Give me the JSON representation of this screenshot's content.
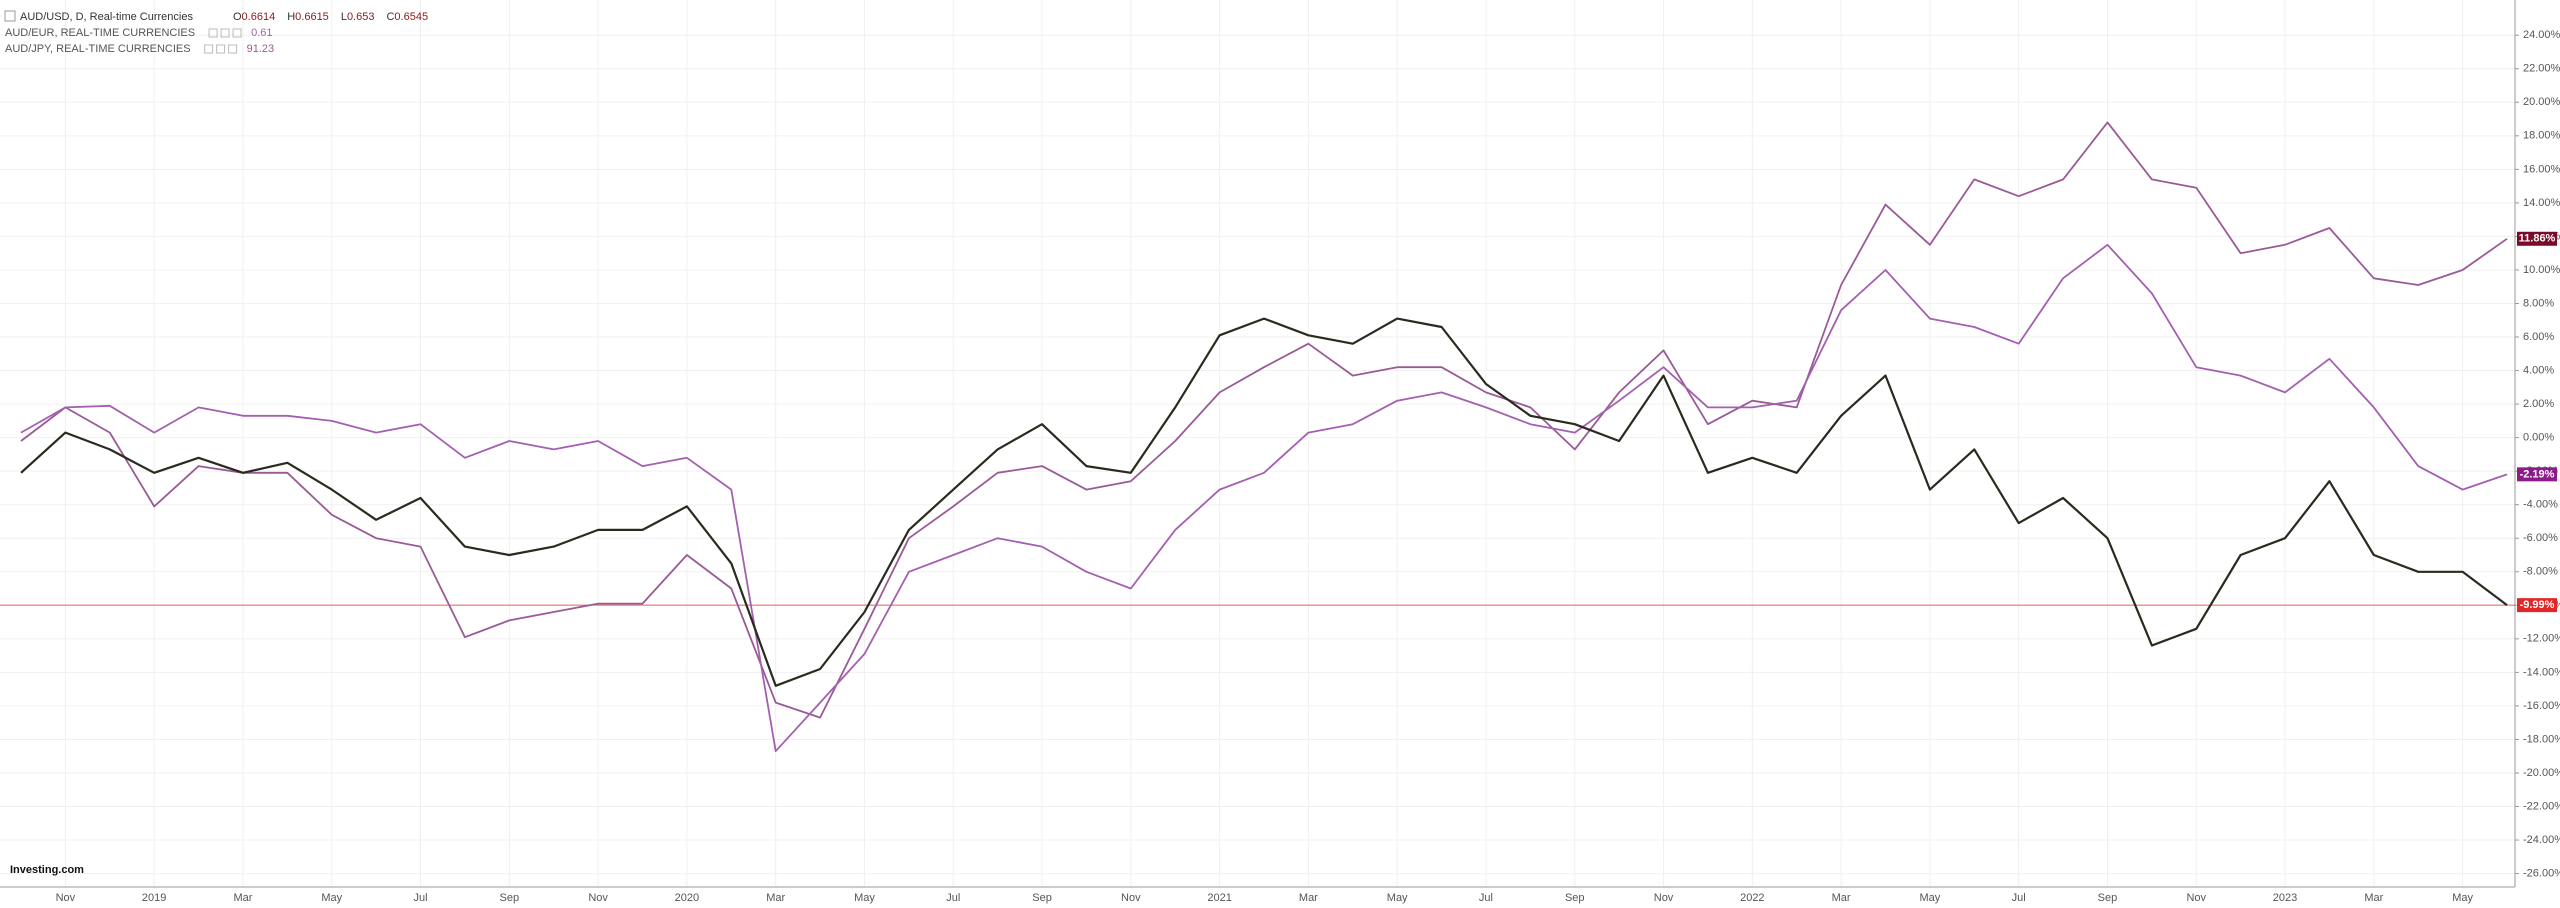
{
  "chart_data": {
    "type": "line",
    "title": "AUD/USD, D, Real-time Currencies",
    "ohlc": [
      {
        "label": "O",
        "value": 0.6614
      },
      {
        "label": "H",
        "value": 0.6615
      },
      {
        "label": "L",
        "value": 0.653
      },
      {
        "label": "C",
        "value": 0.6545
      }
    ],
    "watermark": "Investing.com",
    "categories": [
      null,
      "Nov",
      null,
      "2019",
      null,
      "Mar",
      null,
      "May",
      null,
      "Jul",
      null,
      "Sep",
      null,
      "Nov",
      null,
      "2020",
      null,
      "Mar",
      null,
      "May",
      null,
      "Jul",
      null,
      "Sep",
      null,
      "Nov",
      null,
      "2021",
      null,
      "Mar",
      null,
      "May",
      null,
      "Jul",
      null,
      "Sep",
      null,
      "Nov",
      null,
      "2022",
      null,
      "Mar",
      null,
      "May",
      null,
      "Jul",
      null,
      "Sep",
      null,
      "Nov",
      null,
      "2023",
      null,
      "Mar",
      null,
      "May",
      null
    ],
    "series": [
      {
        "name": "AUD/USD",
        "color": "#2a2a1e",
        "label_color": "#e0282a",
        "values": [
          -2.1,
          0.3,
          -0.7,
          -2.1,
          -1.2,
          -2.1,
          -1.5,
          -3.1,
          -4.9,
          -3.6,
          -6.5,
          -7.0,
          -6.5,
          -5.5,
          -5.5,
          -4.1,
          -7.5,
          -14.8,
          -13.8,
          -10.4,
          -5.5,
          -3.1,
          -0.7,
          0.8,
          -1.7,
          -2.1,
          1.8,
          6.1,
          7.1,
          6.1,
          5.6,
          7.1,
          6.6,
          3.2,
          1.3,
          0.8,
          -0.2,
          3.7,
          -2.1,
          -1.2,
          -2.1,
          1.3,
          3.7,
          -3.1,
          -0.7,
          -5.1,
          -3.6,
          -6.0,
          -12.4,
          -11.4,
          -7.0,
          -6.0,
          -2.6,
          -7.0,
          -8.0,
          -8.0,
          -9.99
        ],
        "value_labels": [
          null,
          null,
          null,
          null,
          null,
          null,
          null,
          null,
          null,
          null,
          null,
          null,
          null,
          null,
          null,
          null,
          null,
          null,
          null,
          null,
          null,
          null,
          null,
          null,
          null,
          null,
          null,
          null,
          null,
          null,
          null,
          null,
          null,
          null,
          null,
          null,
          null,
          null,
          null,
          null,
          null,
          null,
          null,
          null,
          null,
          null,
          null,
          null,
          null,
          null,
          null,
          null,
          null,
          null,
          null,
          null,
          "-9.99%"
        ]
      },
      {
        "name": "AUD/EUR, REAL-TIME CURRENCIES",
        "quote": 0.61,
        "color": "#a45fb0",
        "label_color": "#8b1a8b",
        "values": [
          0.3,
          1.8,
          1.9,
          0.3,
          1.8,
          1.3,
          1.3,
          1.0,
          0.3,
          0.8,
          -1.2,
          -0.2,
          -0.7,
          -0.2,
          -1.7,
          -1.2,
          -3.1,
          -18.7,
          -15.8,
          -12.9,
          -8.0,
          -7.0,
          -6.0,
          -6.5,
          -8.0,
          -9.0,
          -5.5,
          -3.1,
          -2.1,
          0.3,
          0.8,
          2.2,
          2.7,
          1.8,
          0.8,
          0.3,
          2.2,
          4.2,
          1.8,
          1.8,
          2.2,
          7.6,
          10.0,
          7.1,
          6.6,
          5.6,
          9.5,
          11.5,
          8.6,
          4.2,
          3.7,
          2.7,
          4.7,
          1.8,
          -1.7,
          -3.1,
          -2.19
        ],
        "value_labels": [
          null,
          null,
          null,
          null,
          null,
          null,
          null,
          null,
          null,
          null,
          null,
          null,
          null,
          null,
          null,
          null,
          null,
          null,
          null,
          null,
          null,
          null,
          null,
          null,
          null,
          null,
          null,
          null,
          null,
          null,
          null,
          null,
          null,
          null,
          null,
          null,
          null,
          null,
          null,
          null,
          null,
          null,
          null,
          null,
          null,
          null,
          null,
          null,
          null,
          null,
          null,
          null,
          null,
          null,
          null,
          null,
          "-2.19%"
        ]
      },
      {
        "name": "AUD/JPY, REAL-TIME CURRENCIES",
        "quote": 91.23,
        "color": "#9a5a96",
        "label_color": "#7a0a2a",
        "values": [
          -0.2,
          1.8,
          0.3,
          -4.1,
          -1.7,
          -2.1,
          -2.1,
          -4.6,
          -6.0,
          -6.5,
          -11.9,
          -10.9,
          -10.4,
          -9.9,
          -9.9,
          -7.0,
          -9.0,
          -15.8,
          -16.7,
          -11.4,
          -6.0,
          -4.1,
          -2.1,
          -1.7,
          -3.1,
          -2.6,
          -0.2,
          2.7,
          4.2,
          5.6,
          3.7,
          4.2,
          4.2,
          2.7,
          1.8,
          -0.7,
          2.7,
          5.2,
          0.8,
          2.2,
          1.8,
          9.1,
          13.9,
          11.5,
          15.4,
          14.4,
          15.4,
          18.8,
          15.4,
          14.9,
          11.0,
          11.5,
          12.5,
          9.5,
          9.1,
          10.0,
          11.86
        ],
        "value_labels": [
          null,
          null,
          null,
          null,
          null,
          null,
          null,
          null,
          null,
          null,
          null,
          null,
          null,
          null,
          null,
          null,
          null,
          null,
          null,
          null,
          null,
          null,
          null,
          null,
          null,
          null,
          null,
          null,
          null,
          null,
          null,
          null,
          null,
          null,
          null,
          null,
          null,
          null,
          null,
          null,
          null,
          null,
          null,
          null,
          null,
          null,
          null,
          null,
          null,
          null,
          null,
          null,
          null,
          null,
          null,
          null,
          "11.86%"
        ]
      }
    ],
    "ylim": [
      -26.8,
      26.1
    ],
    "yticks": [
      {
        "value": -26,
        "label": "-26.00%"
      },
      {
        "value": -24,
        "label": "-24.00%"
      },
      {
        "value": -22,
        "label": "-22.00%"
      },
      {
        "value": -20,
        "label": "-20.00%"
      },
      {
        "value": -18,
        "label": "-18.00%"
      },
      {
        "value": -16,
        "label": "-16.00%"
      },
      {
        "value": -14,
        "label": "-14.00%"
      },
      {
        "value": -12,
        "label": "-12.00%"
      },
      {
        "value": -10,
        "label": "-10.00%"
      },
      {
        "value": -8,
        "label": "-8.00%"
      },
      {
        "value": -6,
        "label": "-6.00%"
      },
      {
        "value": -4,
        "label": "-4.00%"
      },
      {
        "value": -2,
        "label": "-2.00%"
      },
      {
        "value": 0,
        "label": "0.00%"
      },
      {
        "value": 2,
        "label": "2.00%"
      },
      {
        "value": 4,
        "label": "4.00%"
      },
      {
        "value": 6,
        "label": "6.00%"
      },
      {
        "value": 8,
        "label": "8.00%"
      },
      {
        "value": 10,
        "label": "10.00%"
      },
      {
        "value": 12,
        "label": "12.00%"
      },
      {
        "value": 14,
        "label": "14.00%"
      },
      {
        "value": 16,
        "label": "16.00%"
      },
      {
        "value": 18,
        "label": "18.00%"
      },
      {
        "value": 20,
        "label": "20.00%"
      },
      {
        "value": 22,
        "label": "22.00%"
      },
      {
        "value": 24,
        "label": "24.00%"
      }
    ],
    "grid": true
  }
}
